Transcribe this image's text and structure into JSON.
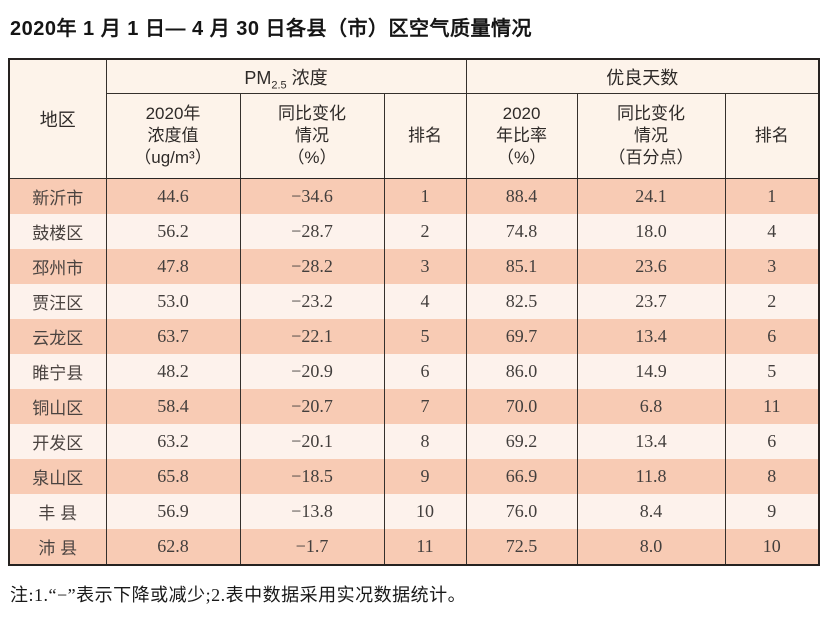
{
  "page": {
    "title": "2020年 1 月 1 日— 4 月 30 日各县（市）区空气质量情况",
    "footnote": "注:1.“−”表示下降或减少;2.表中数据采用实况数据统计。"
  },
  "table": {
    "corner_header": "地区",
    "pm_group": {
      "main": "PM",
      "sub": "2.5",
      "rest": " 浓度"
    },
    "good_group_label": "优良天数",
    "sub_headers": [
      "2020年\n浓度值\n（ug/m³）",
      "同比变化\n情况\n（%）",
      "排名",
      "2020\n年比率\n（%）",
      "同比变化\n情况\n（百分点）",
      "排名"
    ],
    "colors": {
      "row_odd": "#f8cbb4",
      "row_even": "#fdf2ec",
      "header_bg": "#fdf3ea",
      "border": "#35302c",
      "outer_border": "#262220"
    }
  },
  "chart_data": {
    "type": "table",
    "title": "2020年 1 月 1 日— 4 月 30 日各县（市）区空气质量情况",
    "columns": [
      "地区",
      "PM2.5浓度 2020年浓度值（ug/m³）",
      "PM2.5浓度 同比变化情况（%）",
      "PM2.5浓度 排名",
      "优良天数 2020年比率（%）",
      "优良天数 同比变化情况（百分点）",
      "优良天数 排名"
    ],
    "rows": [
      [
        "新沂市",
        44.6,
        -34.6,
        1,
        88.4,
        24.1,
        1
      ],
      [
        "鼓楼区",
        56.2,
        -28.7,
        2,
        74.8,
        18.0,
        4
      ],
      [
        "邳州市",
        47.8,
        -28.2,
        3,
        85.1,
        23.6,
        3
      ],
      [
        "贾汪区",
        53.0,
        -23.2,
        4,
        82.5,
        23.7,
        2
      ],
      [
        "云龙区",
        63.7,
        -22.1,
        5,
        69.7,
        13.4,
        6
      ],
      [
        "睢宁县",
        48.2,
        -20.9,
        6,
        86.0,
        14.9,
        5
      ],
      [
        "铜山区",
        58.4,
        -20.7,
        7,
        70.0,
        6.8,
        11
      ],
      [
        "开发区",
        63.2,
        -20.1,
        8,
        69.2,
        13.4,
        6
      ],
      [
        "泉山区",
        65.8,
        -18.5,
        9,
        66.9,
        11.8,
        8
      ],
      [
        "丰 县",
        56.9,
        -13.8,
        10,
        76.0,
        8.4,
        9
      ],
      [
        "沛 县",
        62.8,
        -1.7,
        11,
        72.5,
        8.0,
        10
      ]
    ]
  }
}
